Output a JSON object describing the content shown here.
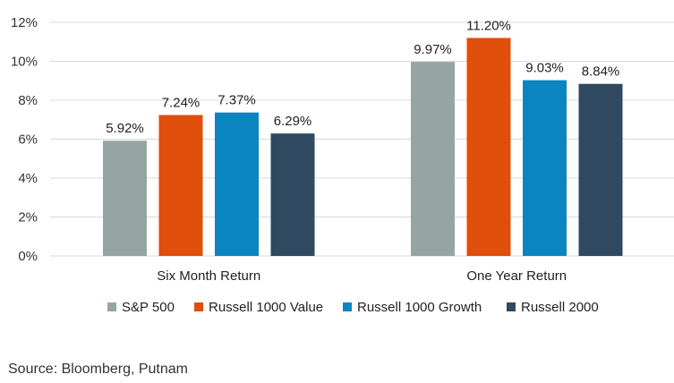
{
  "chart_data": {
    "type": "bar",
    "title": "",
    "xlabel": "",
    "ylabel": "",
    "categories": [
      "Six Month Return",
      "One Year Return"
    ],
    "series": [
      {
        "name": "S&P 500",
        "values": [
          5.92,
          9.97
        ],
        "color": "#95a5a3",
        "labels": [
          "5.92%",
          "9.97%"
        ]
      },
      {
        "name": "Russell 1000 Value",
        "values": [
          7.24,
          11.2
        ],
        "color": "#e04e0c",
        "labels": [
          "7.24%",
          "11.20%"
        ]
      },
      {
        "name": "Russell 1000 Growth",
        "values": [
          7.37,
          9.03
        ],
        "color": "#0a85c2",
        "labels": [
          "7.37%",
          "9.03%"
        ]
      },
      {
        "name": "Russell 2000",
        "values": [
          6.29,
          8.84
        ],
        "color": "#2f4960",
        "labels": [
          "6.29%",
          "8.84%"
        ]
      }
    ],
    "ylim": [
      0,
      12
    ],
    "yticks": [
      0,
      2,
      4,
      6,
      8,
      10,
      12
    ],
    "ytick_labels": [
      "0%",
      "2%",
      "4%",
      "6%",
      "8%",
      "10%",
      "12%"
    ],
    "grid": true,
    "legend_position": "bottom"
  },
  "source": "Source: Bloomberg, Putnam"
}
